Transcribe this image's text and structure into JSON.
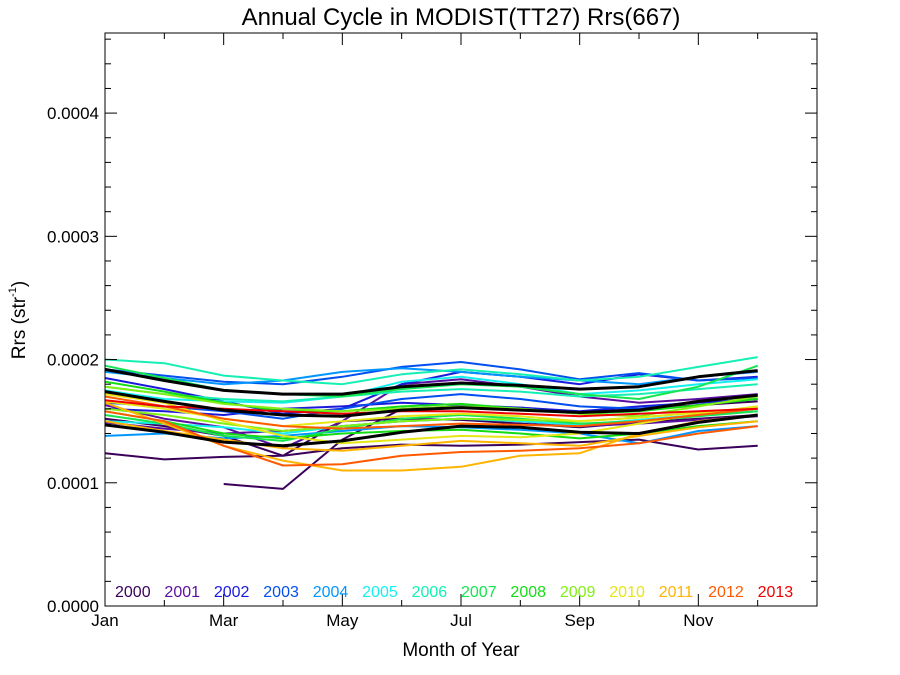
{
  "chart_data": {
    "type": "line",
    "title": "Annual Cycle in MODIST(TT27) Rrs(667)",
    "xlabel": "Month of Year",
    "ylabel_text": "Rrs (str",
    "ylabel_sup": "-1",
    "ylabel_close": ")",
    "xlim": [
      1,
      13
    ],
    "ylim": [
      0,
      0.000465
    ],
    "x_ticks": [
      {
        "x": 1,
        "label": "Jan"
      },
      {
        "x": 3,
        "label": "Mar"
      },
      {
        "x": 5,
        "label": "May"
      },
      {
        "x": 7,
        "label": "Jul"
      },
      {
        "x": 9,
        "label": "Sep"
      },
      {
        "x": 11,
        "label": "Nov"
      }
    ],
    "y_ticks": [
      {
        "y": 0,
        "label": "0.0000"
      },
      {
        "y": 0.0001,
        "label": "0.0001"
      },
      {
        "y": 0.0002,
        "label": "0.0002"
      },
      {
        "y": 0.0003,
        "label": "0.0003"
      },
      {
        "y": 0.0004,
        "label": "0.0004"
      }
    ],
    "x": [
      1,
      2,
      3,
      4,
      5,
      6,
      7,
      8,
      9,
      10,
      11,
      12
    ],
    "series": [
      {
        "name": "2000",
        "color": "#3b005a",
        "lines": [
          [
            0.000124,
            0.000119,
            0.000121,
            0.000122,
            0.000128,
            0.000131,
            0.00013,
            0.000131,
            0.000133,
            0.000135,
            0.000127,
            0.00013
          ],
          [
            null,
            null,
            9.9e-05,
            9.5e-05,
            0.000135,
            0.00016,
            0.000162,
            0.000161,
            0.000157,
            0.00016,
            0.000163,
            0.000166
          ],
          [
            0.000152,
            0.000146,
            0.000138,
            0.000122,
            0.00015,
            0.000152,
            0.000151,
            0.000148,
            0.000145,
            0.000149,
            0.000152,
            0.000155
          ]
        ]
      },
      {
        "name": "2001",
        "color": "#5a0fa0",
        "lines": [
          [
            0.000163,
            0.000152,
            0.000145,
            0.000128,
            0.00015,
            0.00018,
            0.000184,
            0.000178,
            0.00017,
            0.000165,
            0.000168,
            0.000172
          ],
          [
            0.000149,
            0.000144,
            0.00014,
            0.000142,
            0.000146,
            0.00015,
            0.000152,
            0.00015,
            0.000146,
            0.000148,
            0.000151,
            0.000154
          ]
        ]
      },
      {
        "name": "2002",
        "color": "#1a1adc",
        "lines": [
          [
            0.000185,
            0.000176,
            0.000166,
            0.000156,
            0.00016,
            0.00018,
            0.00019,
            0.000186,
            0.00018,
            0.000188,
            0.000183,
            0.000186
          ],
          [
            0.00016,
            0.000158,
            0.000155,
            0.00016,
            0.000162,
            0.000165,
            0.000163,
            0.000161,
            0.000158,
            0.000162,
            0.000165,
            0.000168
          ]
        ]
      },
      {
        "name": "2003",
        "color": "#0050f0",
        "lines": [
          [
            0.000192,
            0.000187,
            0.000182,
            0.00018,
            0.000186,
            0.000194,
            0.000198,
            0.000192,
            0.000184,
            0.000189,
            0.000183,
            0.000185
          ],
          [
            0.000165,
            0.000162,
            0.000158,
            0.000152,
            0.00016,
            0.000168,
            0.000172,
            0.000168,
            0.000162,
            0.00016,
            0.000166,
            0.000171
          ]
        ]
      },
      {
        "name": "2004",
        "color": "#0096ff",
        "lines": [
          [
            0.00019,
            0.000185,
            0.00018,
            0.000183,
            0.00019,
            0.000193,
            0.00019,
            0.000186,
            0.000183,
            0.00018,
            0.000186,
            0.00019
          ],
          [
            0.000138,
            0.00014,
            0.000136,
            0.000138,
            0.000142,
            0.000146,
            0.000145,
            0.000143,
            0.00014,
            0.000132,
            0.000142,
            0.000146
          ]
        ]
      },
      {
        "name": "2005",
        "color": "#14f0f0",
        "lines": [
          [
            0.000175,
            0.000168,
            0.000166,
            0.000165,
            0.00017,
            0.000182,
            0.000186,
            0.00018,
            0.000172,
            0.000175,
            0.00018,
            0.000184
          ],
          [
            0.00015,
            0.000148,
            0.000145,
            0.00014,
            0.000146,
            0.00015,
            0.000152,
            0.00015,
            0.000147,
            0.000151,
            0.000155,
            0.000158
          ]
        ]
      },
      {
        "name": "2006",
        "color": "#14f0b4",
        "lines": [
          [
            0.0002,
            0.000197,
            0.000187,
            0.000183,
            0.00018,
            0.000188,
            0.000192,
            0.000188,
            0.000183,
            0.000186,
            0.000194,
            0.000202
          ],
          [
            0.000178,
            0.000172,
            0.000168,
            0.000166,
            0.00017,
            0.000174,
            0.000176,
            0.000174,
            0.00017,
            0.000172,
            0.000176,
            0.00018
          ]
        ]
      },
      {
        "name": "2007",
        "color": "#14e650",
        "lines": [
          [
            0.000195,
            0.000185,
            0.000175,
            0.000172,
            0.00017,
            0.000176,
            0.00018,
            0.000178,
            0.000172,
            0.000168,
            0.000178,
            0.000195
          ],
          [
            0.000155,
            0.000148,
            0.000138,
            0.000134,
            0.000144,
            0.000152,
            0.000155,
            0.000152,
            0.000148,
            0.00015,
            0.000154,
            0.000158
          ]
        ]
      },
      {
        "name": "2008",
        "color": "#14dc14",
        "lines": [
          [
            0.000182,
            0.000174,
            0.000165,
            0.000158,
            0.000158,
            0.000162,
            0.000164,
            0.00016,
            0.000156,
            0.000158,
            0.000163,
            0.000168
          ],
          [
            0.000158,
            0.00015,
            0.00014,
            0.000136,
            0.00014,
            0.000142,
            0.000143,
            0.00014,
            0.000136,
            0.00014,
            0.000146,
            0.00015
          ]
        ]
      },
      {
        "name": "2009",
        "color": "#82f014",
        "lines": [
          [
            0.000178,
            0.000172,
            0.000164,
            0.00016,
            0.000158,
            0.00016,
            0.000162,
            0.00016,
            0.000156,
            0.000154,
            0.000162,
            0.00017
          ],
          [
            0.00016,
            0.000155,
            0.000148,
            0.000142,
            0.000146,
            0.00015,
            0.000152,
            0.000151,
            0.00015,
            0.000153,
            0.000157,
            0.00016
          ]
        ]
      },
      {
        "name": "2010",
        "color": "#e6e614",
        "lines": [
          [
            0.000172,
            0.000165,
            0.00015,
            0.000138,
            0.000132,
            0.000135,
            0.000138,
            0.000137,
            0.00014,
            0.000148,
            0.000156,
            0.000162
          ],
          [
            0.000166,
            0.00016,
            0.000152,
            0.000146,
            0.00015,
            0.000154,
            0.000156,
            0.000154,
            0.00015,
            0.000153,
            0.000157,
            0.000161
          ]
        ]
      },
      {
        "name": "2011",
        "color": "#ffb400",
        "lines": [
          [
            0.000165,
            0.000148,
            0.00013,
            0.000118,
            0.00011,
            0.00011,
            0.000113,
            0.000122,
            0.000124,
            0.00014,
            0.00015,
            0.000155
          ],
          [
            0.00015,
            0.000142,
            0.000135,
            0.000128,
            0.000126,
            0.00013,
            0.000134,
            0.000132,
            0.00013,
            0.000138,
            0.000145,
            0.00015
          ]
        ]
      },
      {
        "name": "2012",
        "color": "#ff5a00",
        "lines": [
          [
            0.000158,
            0.00015,
            0.00013,
            0.000114,
            0.000115,
            0.000122,
            0.000125,
            0.000126,
            0.000128,
            0.000132,
            0.00014,
            0.000146
          ],
          [
            0.00017,
            0.000162,
            0.000152,
            0.000146,
            0.000144,
            0.000146,
            0.000148,
            0.000147,
            0.000146,
            0.00015,
            0.000155,
            0.00016
          ]
        ]
      },
      {
        "name": "2013",
        "color": "#f00000",
        "lines": [
          [
            0.000167,
            0.000162,
            0.00016,
            0.000158,
            0.000156,
            0.000158,
            0.000158,
            0.000156,
            0.000154,
            0.000156,
            0.000158,
            0.00016
          ]
        ]
      }
    ],
    "mean_lines": {
      "color": "#000000",
      "lines": [
        [
          0.000192,
          0.000183,
          0.000175,
          0.000172,
          0.000172,
          0.000178,
          0.000181,
          0.000179,
          0.000176,
          0.000178,
          0.000186,
          0.000191
        ],
        [
          0.000174,
          0.000166,
          0.000159,
          0.000155,
          0.000154,
          0.000159,
          0.000161,
          0.000159,
          0.000157,
          0.000159,
          0.000166,
          0.000171
        ],
        [
          0.000147,
          0.000141,
          0.000133,
          0.00013,
          0.000134,
          0.000141,
          0.000146,
          0.000145,
          0.000141,
          0.00014,
          0.000149,
          0.000155
        ]
      ]
    }
  }
}
